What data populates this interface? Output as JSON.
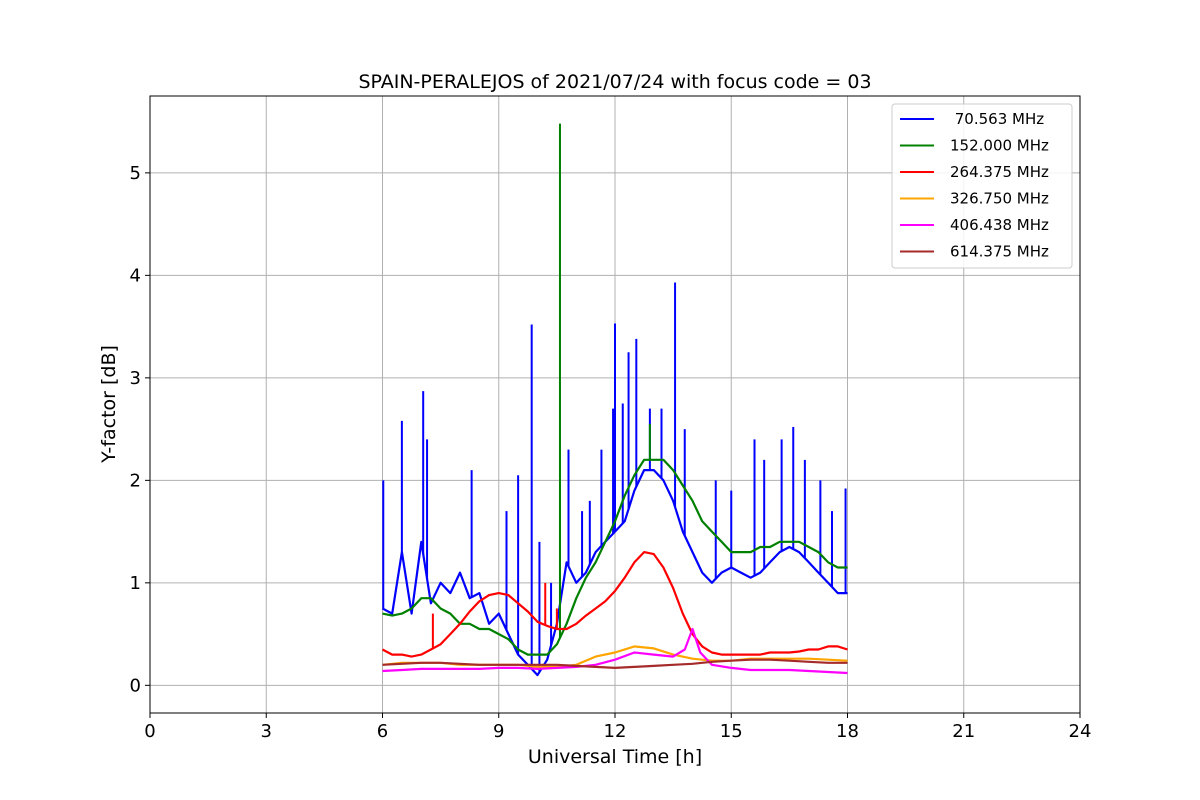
{
  "chart_data": {
    "type": "line",
    "title": "SPAIN-PERALEJOS of 2021/07/24 with focus code = 03",
    "xlabel": "Universal Time [h]",
    "ylabel": "Y-factor [dB]",
    "xlim": [
      0,
      24
    ],
    "ylim": [
      -0.27,
      5.75
    ],
    "xticks": [
      0,
      3,
      6,
      9,
      12,
      15,
      18,
      21,
      24
    ],
    "xtick_labels": [
      "0",
      "3",
      "6",
      "9",
      "12",
      "15",
      "18",
      "21",
      "24"
    ],
    "yticks": [
      0,
      1,
      2,
      3,
      4,
      5
    ],
    "ytick_labels": [
      "0",
      "1",
      "2",
      "3",
      "4",
      "5"
    ],
    "grid": true,
    "legend_position": "top-right",
    "series": [
      {
        "name": " 70.563 MHz",
        "color": "#0000ff",
        "x": [
          6.0,
          6.25,
          6.5,
          6.75,
          7.0,
          7.25,
          7.5,
          7.75,
          8.0,
          8.25,
          8.5,
          8.75,
          9.0,
          9.25,
          9.5,
          9.75,
          10.0,
          10.25,
          10.5,
          10.75,
          11.0,
          11.25,
          11.5,
          11.75,
          12.0,
          12.25,
          12.5,
          12.75,
          13.0,
          13.25,
          13.5,
          13.75,
          14.0,
          14.25,
          14.5,
          14.75,
          15.0,
          15.25,
          15.5,
          15.75,
          16.0,
          16.25,
          16.5,
          16.75,
          17.0,
          17.25,
          17.5,
          17.75,
          18.0
        ],
        "y": [
          0.75,
          0.7,
          1.3,
          0.7,
          1.4,
          0.8,
          1.0,
          0.9,
          1.1,
          0.85,
          0.9,
          0.6,
          0.7,
          0.5,
          0.3,
          0.2,
          0.1,
          0.25,
          0.6,
          1.2,
          1.0,
          1.1,
          1.3,
          1.4,
          1.5,
          1.6,
          1.9,
          2.1,
          2.1,
          2.0,
          1.8,
          1.5,
          1.3,
          1.1,
          1.0,
          1.1,
          1.15,
          1.1,
          1.05,
          1.1,
          1.2,
          1.3,
          1.35,
          1.3,
          1.2,
          1.1,
          1.0,
          0.9,
          0.9
        ],
        "spikes": [
          [
            6.02,
            2.0
          ],
          [
            6.5,
            2.58
          ],
          [
            7.05,
            2.87
          ],
          [
            7.15,
            2.4
          ],
          [
            8.3,
            2.1
          ],
          [
            9.2,
            1.7
          ],
          [
            9.5,
            2.05
          ],
          [
            9.85,
            3.52
          ],
          [
            10.05,
            1.4
          ],
          [
            10.35,
            1.0
          ],
          [
            10.8,
            2.3
          ],
          [
            11.15,
            1.7
          ],
          [
            11.35,
            1.8
          ],
          [
            11.65,
            2.3
          ],
          [
            11.95,
            2.7
          ],
          [
            12.0,
            3.53
          ],
          [
            12.2,
            2.75
          ],
          [
            12.35,
            3.25
          ],
          [
            12.55,
            3.38
          ],
          [
            12.9,
            2.7
          ],
          [
            13.2,
            2.7
          ],
          [
            13.55,
            3.93
          ],
          [
            13.8,
            2.5
          ],
          [
            14.6,
            2.0
          ],
          [
            15.0,
            1.9
          ],
          [
            15.6,
            2.4
          ],
          [
            15.85,
            2.2
          ],
          [
            16.3,
            2.4
          ],
          [
            16.6,
            2.52
          ],
          [
            16.9,
            2.2
          ],
          [
            17.3,
            2.0
          ],
          [
            17.6,
            1.7
          ],
          [
            17.95,
            1.92
          ]
        ]
      },
      {
        "name": "152.000 MHz",
        "color": "#008000",
        "x": [
          6.0,
          6.25,
          6.5,
          6.75,
          7.0,
          7.25,
          7.5,
          7.75,
          8.0,
          8.25,
          8.5,
          8.75,
          9.0,
          9.25,
          9.5,
          9.75,
          10.0,
          10.25,
          10.5,
          10.75,
          11.0,
          11.25,
          11.5,
          11.75,
          12.0,
          12.25,
          12.5,
          12.75,
          13.0,
          13.25,
          13.5,
          13.75,
          14.0,
          14.25,
          14.5,
          14.75,
          15.0,
          15.25,
          15.5,
          15.75,
          16.0,
          16.25,
          16.5,
          16.75,
          17.0,
          17.25,
          17.5,
          17.75,
          18.0
        ],
        "y": [
          0.7,
          0.68,
          0.7,
          0.75,
          0.85,
          0.85,
          0.75,
          0.7,
          0.6,
          0.6,
          0.55,
          0.55,
          0.5,
          0.45,
          0.35,
          0.3,
          0.3,
          0.3,
          0.4,
          0.6,
          0.85,
          1.05,
          1.2,
          1.4,
          1.6,
          1.85,
          2.05,
          2.2,
          2.2,
          2.2,
          2.1,
          1.95,
          1.8,
          1.6,
          1.5,
          1.4,
          1.3,
          1.3,
          1.3,
          1.35,
          1.35,
          1.4,
          1.4,
          1.4,
          1.35,
          1.3,
          1.2,
          1.15,
          1.15
        ],
        "spikes": [
          [
            10.58,
            5.48
          ],
          [
            12.9,
            2.55
          ]
        ]
      },
      {
        "name": "264.375 MHz",
        "color": "#ff0000",
        "x": [
          6.0,
          6.25,
          6.5,
          6.75,
          7.0,
          7.25,
          7.5,
          7.75,
          8.0,
          8.25,
          8.5,
          8.75,
          9.0,
          9.25,
          9.5,
          9.75,
          10.0,
          10.25,
          10.5,
          10.75,
          11.0,
          11.25,
          11.5,
          11.75,
          12.0,
          12.25,
          12.5,
          12.75,
          13.0,
          13.25,
          13.5,
          13.75,
          14.0,
          14.25,
          14.5,
          14.75,
          15.0,
          15.25,
          15.5,
          15.75,
          16.0,
          16.25,
          16.5,
          16.75,
          17.0,
          17.25,
          17.5,
          17.75,
          18.0
        ],
        "y": [
          0.35,
          0.3,
          0.3,
          0.28,
          0.3,
          0.35,
          0.4,
          0.5,
          0.6,
          0.72,
          0.82,
          0.88,
          0.9,
          0.88,
          0.8,
          0.72,
          0.62,
          0.58,
          0.55,
          0.55,
          0.6,
          0.68,
          0.75,
          0.82,
          0.92,
          1.05,
          1.2,
          1.3,
          1.28,
          1.15,
          0.95,
          0.7,
          0.5,
          0.38,
          0.32,
          0.3,
          0.3,
          0.3,
          0.3,
          0.3,
          0.32,
          0.32,
          0.32,
          0.33,
          0.35,
          0.35,
          0.38,
          0.38,
          0.35
        ],
        "spikes": [
          [
            7.3,
            0.7
          ],
          [
            10.2,
            1.0
          ],
          [
            10.5,
            0.75
          ]
        ]
      },
      {
        "name": "326.750 MHz",
        "color": "#ffa500",
        "x": [
          6.0,
          6.5,
          7.0,
          7.5,
          8.0,
          8.5,
          9.0,
          9.5,
          10.0,
          10.5,
          11.0,
          11.5,
          12.0,
          12.5,
          13.0,
          13.5,
          14.0,
          14.5,
          15.0,
          15.5,
          16.0,
          16.5,
          17.0,
          17.5,
          18.0
        ],
        "y": [
          0.2,
          0.22,
          0.22,
          0.22,
          0.2,
          0.2,
          0.2,
          0.2,
          0.18,
          0.18,
          0.2,
          0.28,
          0.32,
          0.38,
          0.36,
          0.3,
          0.26,
          0.24,
          0.24,
          0.26,
          0.26,
          0.26,
          0.26,
          0.25,
          0.24
        ]
      },
      {
        "name": "406.438 MHz",
        "color": "#ff00ff",
        "x": [
          6.0,
          6.5,
          7.0,
          7.5,
          8.0,
          8.5,
          9.0,
          9.5,
          10.0,
          10.5,
          11.0,
          11.5,
          12.0,
          12.5,
          13.0,
          13.5,
          13.8,
          14.0,
          14.2,
          14.5,
          15.0,
          15.5,
          16.0,
          16.5,
          17.0,
          17.5,
          18.0
        ],
        "y": [
          0.14,
          0.15,
          0.16,
          0.16,
          0.16,
          0.16,
          0.17,
          0.17,
          0.16,
          0.17,
          0.18,
          0.2,
          0.25,
          0.32,
          0.3,
          0.28,
          0.35,
          0.55,
          0.32,
          0.2,
          0.17,
          0.15,
          0.15,
          0.15,
          0.14,
          0.13,
          0.12
        ]
      },
      {
        "name": "614.375 MHz",
        "color": "#a52a2a",
        "x": [
          6.0,
          6.5,
          7.0,
          7.5,
          8.0,
          8.5,
          9.0,
          9.5,
          10.0,
          10.5,
          11.0,
          11.5,
          12.0,
          12.5,
          13.0,
          13.5,
          14.0,
          14.5,
          15.0,
          15.5,
          16.0,
          16.5,
          17.0,
          17.5,
          18.0
        ],
        "y": [
          0.2,
          0.21,
          0.22,
          0.22,
          0.21,
          0.2,
          0.2,
          0.2,
          0.2,
          0.2,
          0.19,
          0.18,
          0.17,
          0.18,
          0.19,
          0.2,
          0.21,
          0.23,
          0.24,
          0.25,
          0.25,
          0.24,
          0.23,
          0.22,
          0.22
        ]
      }
    ]
  }
}
